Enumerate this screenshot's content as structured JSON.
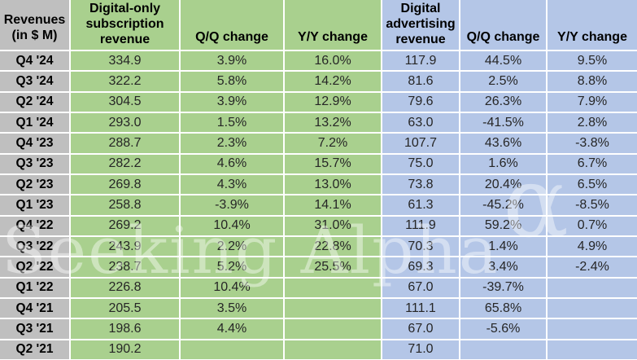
{
  "table": {
    "corner_header": "Revenues\n(in $ M)",
    "column_headers": [
      "Digital-only\nsubscription\nrevenue",
      "Q/Q change",
      "Y/Y change",
      "Digital\nadvertising\nrevenue",
      "Q/Q change",
      "Y/Y change"
    ],
    "rows": [
      {
        "quarter": "Q4 '24",
        "cells": [
          "334.9",
          "3.9%",
          "16.0%",
          "117.9",
          "44.5%",
          "9.5%"
        ]
      },
      {
        "quarter": "Q3 '24",
        "cells": [
          "322.2",
          "5.8%",
          "14.2%",
          "81.6",
          "2.5%",
          "8.8%"
        ]
      },
      {
        "quarter": "Q2 '24",
        "cells": [
          "304.5",
          "3.9%",
          "12.9%",
          "79.6",
          "26.3%",
          "7.9%"
        ]
      },
      {
        "quarter": "Q1 '24",
        "cells": [
          "293.0",
          "1.5%",
          "13.2%",
          "63.0",
          "-41.5%",
          "2.8%"
        ]
      },
      {
        "quarter": "Q4 '23",
        "cells": [
          "288.7",
          "2.3%",
          "7.2%",
          "107.7",
          "43.6%",
          "-3.8%"
        ]
      },
      {
        "quarter": "Q3 '23",
        "cells": [
          "282.2",
          "4.6%",
          "15.7%",
          "75.0",
          "1.6%",
          "6.7%"
        ]
      },
      {
        "quarter": "Q2 '23",
        "cells": [
          "269.8",
          "4.3%",
          "13.0%",
          "73.8",
          "20.4%",
          "6.5%"
        ]
      },
      {
        "quarter": "Q1 '23",
        "cells": [
          "258.8",
          "-3.9%",
          "14.1%",
          "61.3",
          "-45.2%",
          "-8.5%"
        ]
      },
      {
        "quarter": "Q4 '22",
        "cells": [
          "269.2",
          "10.4%",
          "31.0%",
          "111.9",
          "59.2%",
          "0.7%"
        ]
      },
      {
        "quarter": "Q3 '22",
        "cells": [
          "243.9",
          "2.2%",
          "22.8%",
          "70.3",
          "1.4%",
          "4.9%"
        ]
      },
      {
        "quarter": "Q2 '22",
        "cells": [
          "238.7",
          "5.2%",
          "25.5%",
          "69.3",
          "3.4%",
          "-2.4%"
        ]
      },
      {
        "quarter": "Q1 '22",
        "cells": [
          "226.8",
          "10.4%",
          "",
          "67.0",
          "-39.7%",
          ""
        ]
      },
      {
        "quarter": "Q4 '21",
        "cells": [
          "205.5",
          "3.5%",
          "",
          "111.1",
          "65.8%",
          ""
        ]
      },
      {
        "quarter": "Q3 '21",
        "cells": [
          "198.6",
          "4.4%",
          "",
          "67.0",
          "-5.6%",
          ""
        ]
      },
      {
        "quarter": "Q2 '21",
        "cells": [
          "190.2",
          "",
          "",
          "71.0",
          "",
          ""
        ]
      }
    ]
  },
  "watermark": {
    "text": "Seeking Alpha",
    "symbol": "α"
  },
  "colors": {
    "green_fill": "#a9d08e",
    "blue_fill": "#b4c6e7",
    "gray_fill": "#bfbfbf",
    "grid_line": "#ffffff",
    "data_text": "#262626",
    "header_text": "#000000"
  },
  "chart_data": {
    "type": "table",
    "title": "Revenues (in $ M)",
    "categories": [
      "Q4 '24",
      "Q3 '24",
      "Q2 '24",
      "Q1 '24",
      "Q4 '23",
      "Q3 '23",
      "Q2 '23",
      "Q1 '23",
      "Q4 '22",
      "Q3 '22",
      "Q2 '22",
      "Q1 '22",
      "Q4 '21",
      "Q3 '21",
      "Q2 '21"
    ],
    "series": [
      {
        "name": "Digital-only subscription revenue ($M)",
        "values": [
          334.9,
          322.2,
          304.5,
          293.0,
          288.7,
          282.2,
          269.8,
          258.8,
          269.2,
          243.9,
          238.7,
          226.8,
          205.5,
          198.6,
          190.2
        ]
      },
      {
        "name": "Digital-only subscription Q/Q change (%)",
        "values": [
          3.9,
          5.8,
          3.9,
          1.5,
          2.3,
          4.6,
          4.3,
          -3.9,
          10.4,
          2.2,
          5.2,
          10.4,
          3.5,
          4.4,
          null
        ]
      },
      {
        "name": "Digital-only subscription Y/Y change (%)",
        "values": [
          16.0,
          14.2,
          12.9,
          13.2,
          7.2,
          15.7,
          13.0,
          14.1,
          31.0,
          22.8,
          25.5,
          null,
          null,
          null,
          null
        ]
      },
      {
        "name": "Digital advertising revenue ($M)",
        "values": [
          117.9,
          81.6,
          79.6,
          63.0,
          107.7,
          75.0,
          73.8,
          61.3,
          111.9,
          70.3,
          69.3,
          67.0,
          111.1,
          67.0,
          71.0
        ]
      },
      {
        "name": "Digital advertising Q/Q change (%)",
        "values": [
          44.5,
          2.5,
          26.3,
          -41.5,
          43.6,
          1.6,
          20.4,
          -45.2,
          59.2,
          1.4,
          3.4,
          -39.7,
          65.8,
          -5.6,
          null
        ]
      },
      {
        "name": "Digital advertising Y/Y change (%)",
        "values": [
          9.5,
          8.8,
          7.9,
          2.8,
          -3.8,
          6.7,
          6.5,
          -8.5,
          0.7,
          4.9,
          -2.4,
          null,
          null,
          null,
          null
        ]
      }
    ]
  }
}
